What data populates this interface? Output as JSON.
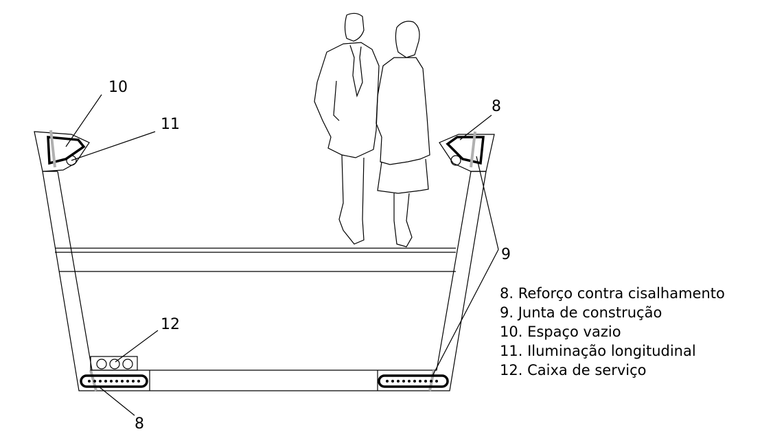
{
  "callouts": [
    {
      "id": "c10",
      "number": "10"
    },
    {
      "id": "c11",
      "number": "11"
    },
    {
      "id": "c8-top",
      "number": "8"
    },
    {
      "id": "c9",
      "number": "9"
    },
    {
      "id": "c12",
      "number": "12"
    },
    {
      "id": "c8-bottom",
      "number": "8"
    }
  ],
  "legend": [
    "8. Reforço contra cisalhamento",
    "9. Junta de construção",
    "10. Espaço vazio",
    "11. Iluminação longitudinal",
    "12. Caixa de serviço"
  ]
}
